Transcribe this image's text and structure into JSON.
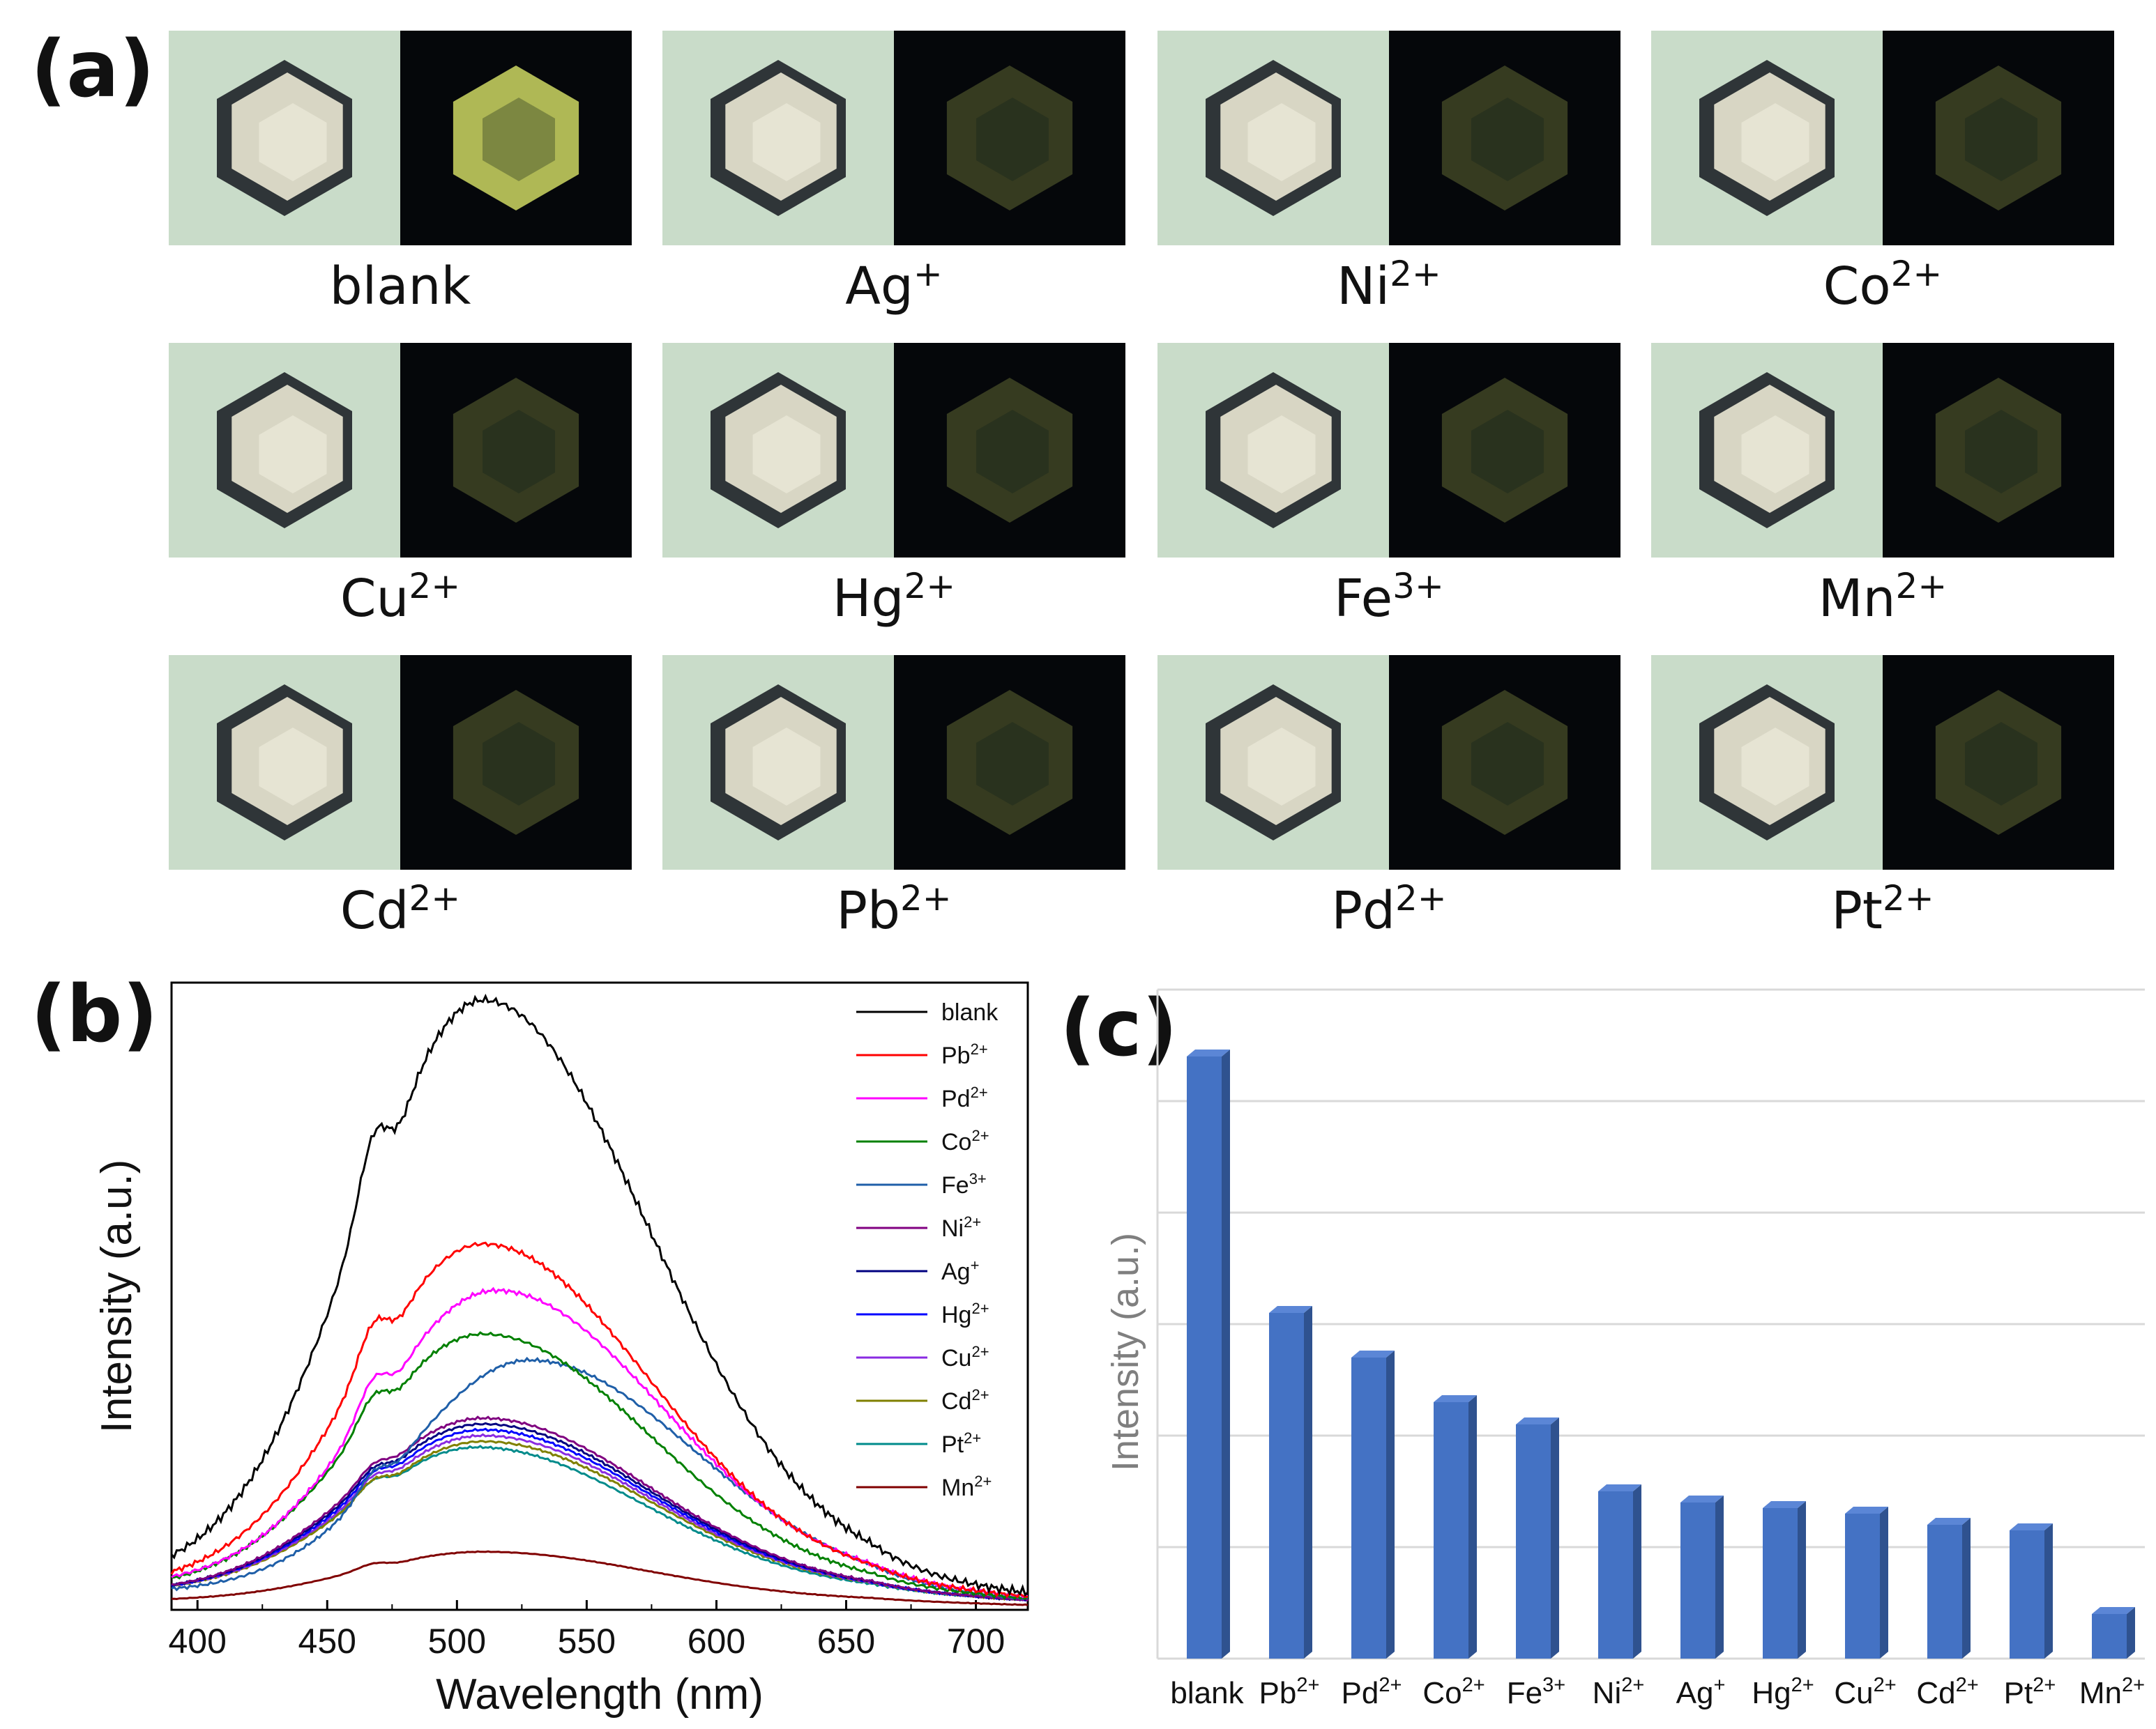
{
  "panels": {
    "a": "(a)",
    "b": "(b)",
    "c": "(c)"
  },
  "crystal_panel": {
    "cells": [
      {
        "ion": "blank",
        "charge": ""
      },
      {
        "ion": "Ag",
        "charge": "+"
      },
      {
        "ion": "Ni",
        "charge": "2+"
      },
      {
        "ion": "Co",
        "charge": "2+"
      },
      {
        "ion": "Cu",
        "charge": "2+"
      },
      {
        "ion": "Hg",
        "charge": "2+"
      },
      {
        "ion": "Fe",
        "charge": "3+"
      },
      {
        "ion": "Mn",
        "charge": "2+"
      },
      {
        "ion": "Cd",
        "charge": "2+"
      },
      {
        "ion": "Pb",
        "charge": "2+"
      },
      {
        "ion": "Pd",
        "charge": "2+"
      },
      {
        "ion": "Pt",
        "charge": "2+"
      }
    ],
    "colors": {
      "bright_field": "#c9dcc9",
      "crystal": "#d8d6c4",
      "dark_field": "#05070a",
      "emission": "#b8c25a"
    }
  },
  "chart_data": [
    {
      "type": "line",
      "title": "",
      "xlabel": "Wavelength (nm)",
      "ylabel": "Intensity (a.u.)",
      "xlim": [
        390,
        720
      ],
      "ylim": [
        0,
        1.08
      ],
      "xticks": [
        400,
        450,
        500,
        550,
        600,
        650,
        700
      ],
      "legend_position": "top-right",
      "series": [
        {
          "name": "blank",
          "ion": "blank",
          "charge": "",
          "color": "#000000",
          "peak": 510,
          "amplitude": 1.0,
          "baseline": 0.05,
          "shoulder": 0.1
        },
        {
          "name": "Pb2+",
          "ion": "Pb",
          "charge": "2+",
          "color": "#ff0000",
          "peak": 510,
          "amplitude": 0.59,
          "baseline": 0.04,
          "shoulder": 0.06
        },
        {
          "name": "Pd2+",
          "ion": "Pd",
          "charge": "2+",
          "color": "#ff00ff",
          "peak": 515,
          "amplitude": 0.51,
          "baseline": 0.04,
          "shoulder": 0.05
        },
        {
          "name": "Co2+",
          "ion": "Co",
          "charge": "2+",
          "color": "#008000",
          "peak": 510,
          "amplitude": 0.44,
          "baseline": 0.035,
          "shoulder": 0.04
        },
        {
          "name": "Fe3+",
          "ion": "Fe",
          "charge": "3+",
          "color": "#1f5fa8",
          "peak": 528,
          "amplitude": 0.4,
          "baseline": 0.03,
          "shoulder": 0.03
        },
        {
          "name": "Ni2+",
          "ion": "Ni",
          "charge": "2+",
          "color": "#800080",
          "peak": 510,
          "amplitude": 0.3,
          "baseline": 0.03,
          "shoulder": 0.02
        },
        {
          "name": "Ag+",
          "ion": "Ag",
          "charge": "+",
          "color": "#000080",
          "peak": 510,
          "amplitude": 0.29,
          "baseline": 0.03,
          "shoulder": 0.02
        },
        {
          "name": "Hg2+",
          "ion": "Hg",
          "charge": "2+",
          "color": "#0000ff",
          "peak": 510,
          "amplitude": 0.28,
          "baseline": 0.03,
          "shoulder": 0.02
        },
        {
          "name": "Cu2+",
          "ion": "Cu",
          "charge": "2+",
          "color": "#8a2be2",
          "peak": 510,
          "amplitude": 0.27,
          "baseline": 0.03,
          "shoulder": 0.02
        },
        {
          "name": "Cd2+",
          "ion": "Cd",
          "charge": "2+",
          "color": "#808000",
          "peak": 510,
          "amplitude": 0.26,
          "baseline": 0.03,
          "shoulder": 0.02
        },
        {
          "name": "Pt2+",
          "ion": "Pt",
          "charge": "2+",
          "color": "#008b8b",
          "peak": 508,
          "amplitude": 0.25,
          "baseline": 0.03,
          "shoulder": 0.02
        },
        {
          "name": "Mn2+",
          "ion": "Mn",
          "charge": "2+",
          "color": "#800000",
          "peak": 510,
          "amplitude": 0.085,
          "baseline": 0.015,
          "shoulder": 0.008
        }
      ]
    },
    {
      "type": "bar",
      "title": "",
      "xlabel": "",
      "ylabel": "Intensity (a.u.)",
      "ylim": [
        0,
        6
      ],
      "grid": true,
      "categories": [
        {
          "ion": "blank",
          "charge": ""
        },
        {
          "ion": "Pb",
          "charge": "2+"
        },
        {
          "ion": "Pd",
          "charge": "2+"
        },
        {
          "ion": "Co",
          "charge": "2+"
        },
        {
          "ion": "Fe",
          "charge": "3+"
        },
        {
          "ion": "Ni",
          "charge": "2+"
        },
        {
          "ion": "Ag",
          "charge": "+"
        },
        {
          "ion": "Hg",
          "charge": "2+"
        },
        {
          "ion": "Cu",
          "charge": "2+"
        },
        {
          "ion": "Cd",
          "charge": "2+"
        },
        {
          "ion": "Pt",
          "charge": "2+"
        },
        {
          "ion": "Mn",
          "charge": "2+"
        }
      ],
      "values": [
        5.4,
        3.1,
        2.7,
        2.3,
        2.1,
        1.5,
        1.4,
        1.35,
        1.3,
        1.2,
        1.15,
        0.4
      ],
      "colors": {
        "bar_front": "#4472c4",
        "bar_side": "#2f528f",
        "bar_top": "#5b86d6",
        "grid": "#d9d9d9",
        "axis_label": "#7f7f7f"
      }
    }
  ]
}
